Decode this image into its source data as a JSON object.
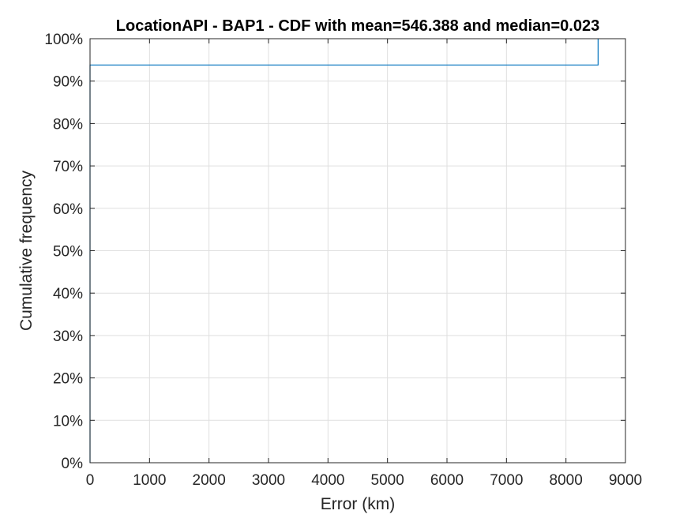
{
  "chart_data": {
    "type": "line",
    "title": "LocationAPI - BAP1 - CDF with mean=546.388 and median=0.023",
    "xlabel": "Error (km)",
    "ylabel": "Cumulative frequency",
    "xlim": [
      0,
      9000
    ],
    "ylim": [
      0,
      1
    ],
    "xticks": [
      0,
      1000,
      2000,
      3000,
      4000,
      5000,
      6000,
      7000,
      8000,
      9000
    ],
    "xtick_labels": [
      "0",
      "1000",
      "2000",
      "3000",
      "4000",
      "5000",
      "6000",
      "7000",
      "8000",
      "9000"
    ],
    "yticks": [
      0,
      0.1,
      0.2,
      0.3,
      0.4,
      0.5,
      0.6,
      0.7,
      0.8,
      0.9,
      1.0
    ],
    "ytick_labels": [
      "0%",
      "10%",
      "20%",
      "30%",
      "40%",
      "50%",
      "60%",
      "70%",
      "80%",
      "90%",
      "100%"
    ],
    "grid": true,
    "series": [
      {
        "color": "#0072bd",
        "x": [
          0,
          0,
          8540,
          8540
        ],
        "y": [
          0,
          0.938,
          0.938,
          1.0
        ]
      }
    ]
  }
}
